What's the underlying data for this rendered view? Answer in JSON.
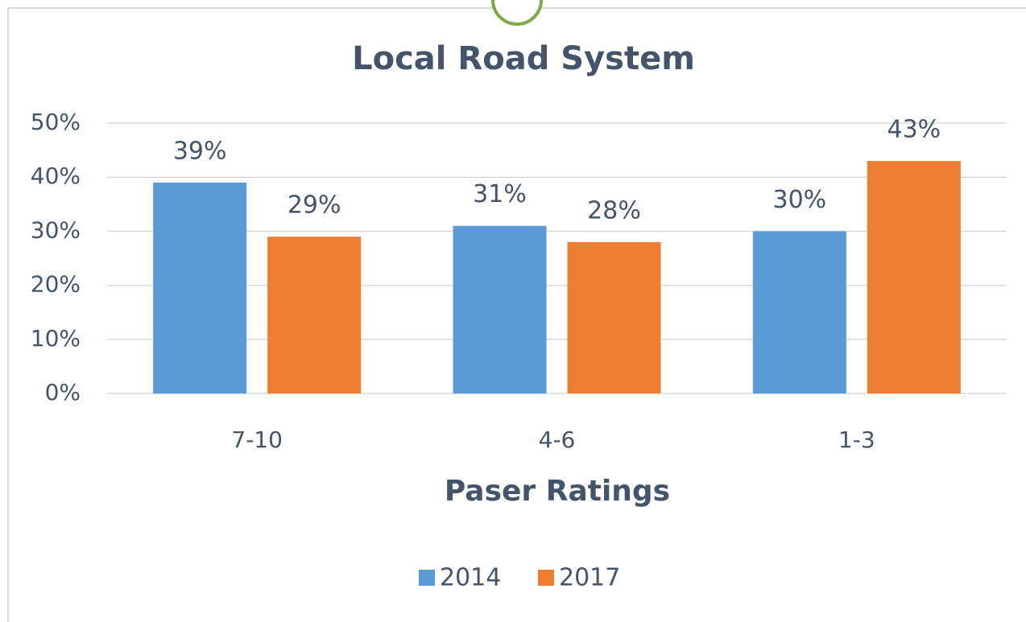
{
  "chart_data": {
    "type": "bar",
    "title": "Local Road System",
    "x_label": "Paser Ratings",
    "categories": [
      "7-10",
      "4-6",
      "1-3"
    ],
    "series": [
      {
        "name": "2014",
        "color": "#5b9bd5",
        "values": [
          39,
          31,
          30
        ],
        "value_labels": [
          "39%",
          "31%",
          "30%"
        ]
      },
      {
        "name": "2017",
        "color": "#ed7d31",
        "values": [
          29,
          28,
          43
        ],
        "value_labels": [
          "29%",
          "28%",
          "43%"
        ]
      }
    ],
    "ylim": [
      0,
      50
    ],
    "yticks": [
      {
        "value": 0,
        "label": "0%"
      },
      {
        "value": 10,
        "label": "10%"
      },
      {
        "value": 20,
        "label": "20%"
      },
      {
        "value": 30,
        "label": "30%"
      },
      {
        "value": 40,
        "label": "40%"
      },
      {
        "value": 50,
        "label": "50%"
      }
    ],
    "grid": true,
    "legend": "bottom"
  }
}
